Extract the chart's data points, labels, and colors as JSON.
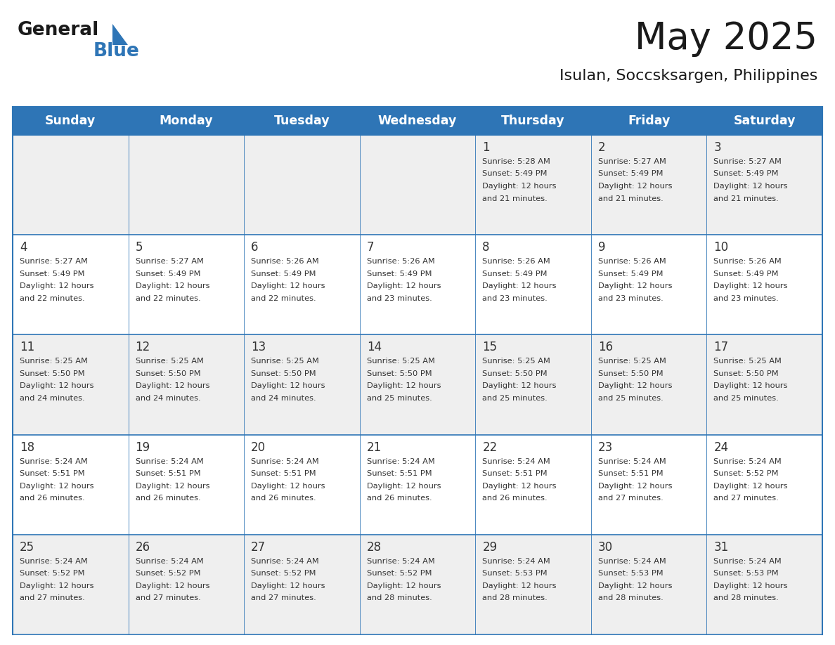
{
  "title": "May 2025",
  "subtitle": "Isulan, Soccsksargen, Philippines",
  "days_of_week": [
    "Sunday",
    "Monday",
    "Tuesday",
    "Wednesday",
    "Thursday",
    "Friday",
    "Saturday"
  ],
  "header_bg": "#2E75B6",
  "header_text_color": "#FFFFFF",
  "cell_bg_even": "#EFEFEF",
  "cell_bg_odd": "#FFFFFF",
  "border_color": "#2E75B6",
  "text_color": "#333333",
  "calendar_data": [
    [
      null,
      null,
      null,
      null,
      {
        "day": "1",
        "sunrise": "5:28 AM",
        "sunset": "5:49 PM",
        "daylight": "12 hours",
        "daylight2": "and 21 minutes."
      },
      {
        "day": "2",
        "sunrise": "5:27 AM",
        "sunset": "5:49 PM",
        "daylight": "12 hours",
        "daylight2": "and 21 minutes."
      },
      {
        "day": "3",
        "sunrise": "5:27 AM",
        "sunset": "5:49 PM",
        "daylight": "12 hours",
        "daylight2": "and 21 minutes."
      }
    ],
    [
      {
        "day": "4",
        "sunrise": "5:27 AM",
        "sunset": "5:49 PM",
        "daylight": "12 hours",
        "daylight2": "and 22 minutes."
      },
      {
        "day": "5",
        "sunrise": "5:27 AM",
        "sunset": "5:49 PM",
        "daylight": "12 hours",
        "daylight2": "and 22 minutes."
      },
      {
        "day": "6",
        "sunrise": "5:26 AM",
        "sunset": "5:49 PM",
        "daylight": "12 hours",
        "daylight2": "and 22 minutes."
      },
      {
        "day": "7",
        "sunrise": "5:26 AM",
        "sunset": "5:49 PM",
        "daylight": "12 hours",
        "daylight2": "and 23 minutes."
      },
      {
        "day": "8",
        "sunrise": "5:26 AM",
        "sunset": "5:49 PM",
        "daylight": "12 hours",
        "daylight2": "and 23 minutes."
      },
      {
        "day": "9",
        "sunrise": "5:26 AM",
        "sunset": "5:49 PM",
        "daylight": "12 hours",
        "daylight2": "and 23 minutes."
      },
      {
        "day": "10",
        "sunrise": "5:26 AM",
        "sunset": "5:49 PM",
        "daylight": "12 hours",
        "daylight2": "and 23 minutes."
      }
    ],
    [
      {
        "day": "11",
        "sunrise": "5:25 AM",
        "sunset": "5:50 PM",
        "daylight": "12 hours",
        "daylight2": "and 24 minutes."
      },
      {
        "day": "12",
        "sunrise": "5:25 AM",
        "sunset": "5:50 PM",
        "daylight": "12 hours",
        "daylight2": "and 24 minutes."
      },
      {
        "day": "13",
        "sunrise": "5:25 AM",
        "sunset": "5:50 PM",
        "daylight": "12 hours",
        "daylight2": "and 24 minutes."
      },
      {
        "day": "14",
        "sunrise": "5:25 AM",
        "sunset": "5:50 PM",
        "daylight": "12 hours",
        "daylight2": "and 25 minutes."
      },
      {
        "day": "15",
        "sunrise": "5:25 AM",
        "sunset": "5:50 PM",
        "daylight": "12 hours",
        "daylight2": "and 25 minutes."
      },
      {
        "day": "16",
        "sunrise": "5:25 AM",
        "sunset": "5:50 PM",
        "daylight": "12 hours",
        "daylight2": "and 25 minutes."
      },
      {
        "day": "17",
        "sunrise": "5:25 AM",
        "sunset": "5:50 PM",
        "daylight": "12 hours",
        "daylight2": "and 25 minutes."
      }
    ],
    [
      {
        "day": "18",
        "sunrise": "5:24 AM",
        "sunset": "5:51 PM",
        "daylight": "12 hours",
        "daylight2": "and 26 minutes."
      },
      {
        "day": "19",
        "sunrise": "5:24 AM",
        "sunset": "5:51 PM",
        "daylight": "12 hours",
        "daylight2": "and 26 minutes."
      },
      {
        "day": "20",
        "sunrise": "5:24 AM",
        "sunset": "5:51 PM",
        "daylight": "12 hours",
        "daylight2": "and 26 minutes."
      },
      {
        "day": "21",
        "sunrise": "5:24 AM",
        "sunset": "5:51 PM",
        "daylight": "12 hours",
        "daylight2": "and 26 minutes."
      },
      {
        "day": "22",
        "sunrise": "5:24 AM",
        "sunset": "5:51 PM",
        "daylight": "12 hours",
        "daylight2": "and 26 minutes."
      },
      {
        "day": "23",
        "sunrise": "5:24 AM",
        "sunset": "5:51 PM",
        "daylight": "12 hours",
        "daylight2": "and 27 minutes."
      },
      {
        "day": "24",
        "sunrise": "5:24 AM",
        "sunset": "5:52 PM",
        "daylight": "12 hours",
        "daylight2": "and 27 minutes."
      }
    ],
    [
      {
        "day": "25",
        "sunrise": "5:24 AM",
        "sunset": "5:52 PM",
        "daylight": "12 hours",
        "daylight2": "and 27 minutes."
      },
      {
        "day": "26",
        "sunrise": "5:24 AM",
        "sunset": "5:52 PM",
        "daylight": "12 hours",
        "daylight2": "and 27 minutes."
      },
      {
        "day": "27",
        "sunrise": "5:24 AM",
        "sunset": "5:52 PM",
        "daylight": "12 hours",
        "daylight2": "and 27 minutes."
      },
      {
        "day": "28",
        "sunrise": "5:24 AM",
        "sunset": "5:52 PM",
        "daylight": "12 hours",
        "daylight2": "and 28 minutes."
      },
      {
        "day": "29",
        "sunrise": "5:24 AM",
        "sunset": "5:53 PM",
        "daylight": "12 hours",
        "daylight2": "and 28 minutes."
      },
      {
        "day": "30",
        "sunrise": "5:24 AM",
        "sunset": "5:53 PM",
        "daylight": "12 hours",
        "daylight2": "and 28 minutes."
      },
      {
        "day": "31",
        "sunrise": "5:24 AM",
        "sunset": "5:53 PM",
        "daylight": "12 hours",
        "daylight2": "and 28 minutes."
      }
    ]
  ]
}
